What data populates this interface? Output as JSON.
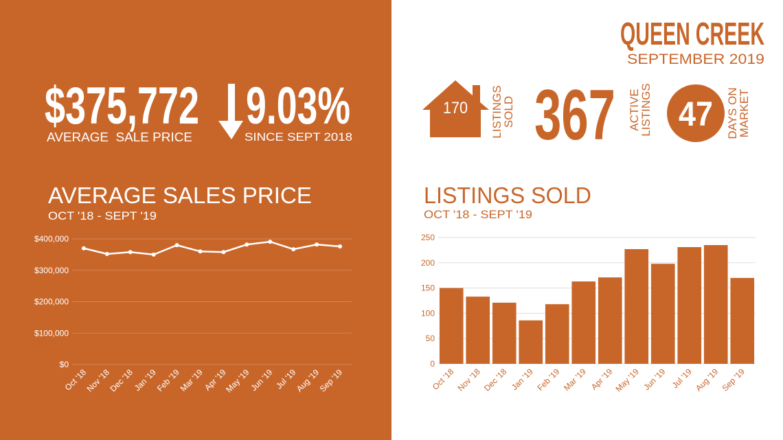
{
  "header": {
    "city": "QUEEN CREEK",
    "period": "SEPTEMBER 2019"
  },
  "price": {
    "value": "$375,772",
    "label": "AVERAGE  SALE PRICE",
    "change": "9.03%",
    "change_label": "SINCE SEPT 2018"
  },
  "stats": [
    {
      "value": "170",
      "label": [
        "LISTINGS",
        "SOLD"
      ]
    },
    {
      "value": "367",
      "label": [
        "ACTIVE",
        "LISTINGS"
      ]
    },
    {
      "value": "47",
      "label": [
        "DAYS ON",
        "MARKET"
      ]
    }
  ],
  "chart_data": [
    {
      "type": "line",
      "title": "AVERAGE SALES PRICE",
      "subtitle": "OCT '18 - SEPT '19",
      "categories": [
        "Oct '18",
        "Nov '18",
        "Dec '18",
        "Jan '19",
        "Feb '19",
        "Mar '19",
        "Apr '19",
        "May '19",
        "Jun '19",
        "Jul '19",
        "Aug '19",
        "Sep '19"
      ],
      "values": [
        370000,
        352000,
        358000,
        350000,
        380000,
        360000,
        358000,
        382000,
        391000,
        367000,
        382000,
        376000
      ],
      "color": "#ffffff",
      "ylim": [
        0,
        400000
      ],
      "yticks": [
        {
          "value": 0,
          "label": "$0"
        },
        {
          "value": 100000,
          "label": "$100,000"
        },
        {
          "value": 200000,
          "label": "$200,000"
        },
        {
          "value": 300000,
          "label": "$300,000"
        },
        {
          "value": 400000,
          "label": "$400,000"
        }
      ],
      "grid": true
    },
    {
      "type": "bar",
      "title": "LISTINGS SOLD",
      "subtitle": "OCT '18 - SEPT '19",
      "categories": [
        "Oct '18",
        "Nov '18",
        "Dec '18",
        "Jan '19",
        "Feb '19",
        "Mar '19",
        "Apr '19",
        "May '19",
        "Jun '19",
        "Jul '19",
        "Aug '19",
        "Sep '19"
      ],
      "values": [
        150,
        133,
        121,
        86,
        118,
        163,
        171,
        227,
        198,
        231,
        235,
        170
      ],
      "color": "#c8662a",
      "ylim": [
        0,
        250
      ],
      "yticks": [
        0,
        50,
        100,
        150,
        200,
        250
      ],
      "grid": true
    }
  ]
}
